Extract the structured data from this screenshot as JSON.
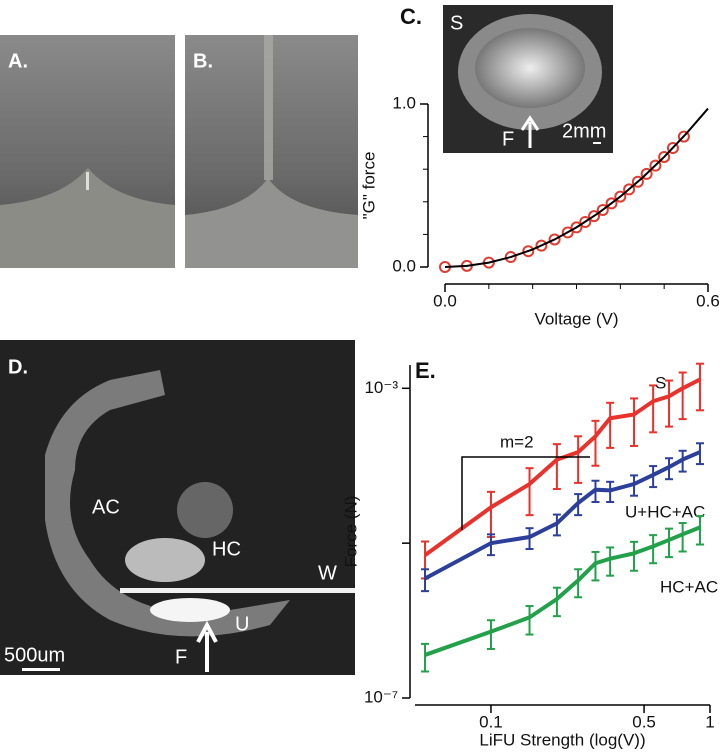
{
  "panel_labels": [
    "A.",
    "B.",
    "C.",
    "D.",
    "E."
  ],
  "inset_c": {
    "labels": [
      "S",
      "F",
      "2mm"
    ]
  },
  "photo_d": {
    "labels": [
      "AC",
      "HC",
      "W",
      "U",
      "F",
      "500um"
    ]
  },
  "chart_data": [
    {
      "type": "scatter",
      "xlabel": "Voltage (V)",
      "ylabel": "\"G\" force",
      "xlim": [
        0,
        0.6
      ],
      "ylim": [
        0,
        1
      ],
      "xticks": [
        {
          "value": 0,
          "label": "0.0"
        },
        {
          "value": 0.6,
          "label": "0.6"
        }
      ],
      "xminor": [
        0.1,
        0.2,
        0.3,
        0.4,
        0.5
      ],
      "yticks": [
        {
          "value": 0,
          "label": "0.0"
        },
        {
          "value": 1,
          "label": "1.0"
        }
      ],
      "yminor": [
        0.2,
        0.4,
        0.6,
        0.8
      ],
      "series": [
        {
          "kind": "points",
          "color": "#e03c31",
          "x": [
            0,
            0.05,
            0.1,
            0.15,
            0.19,
            0.22,
            0.25,
            0.28,
            0.3,
            0.32,
            0.34,
            0.36,
            0.38,
            0.4,
            0.42,
            0.44,
            0.46,
            0.48,
            0.5,
            0.52,
            0.545
          ],
          "values": [
            0,
            0.007,
            0.027,
            0.061,
            0.097,
            0.131,
            0.169,
            0.212,
            0.243,
            0.276,
            0.312,
            0.35,
            0.39,
            0.432,
            0.476,
            0.523,
            0.571,
            0.622,
            0.675,
            0.73,
            0.8
          ]
        },
        {
          "kind": "curve",
          "color": "#000000",
          "x": [
            0,
            0.05,
            0.1,
            0.15,
            0.2,
            0.25,
            0.3,
            0.35,
            0.4,
            0.45,
            0.5,
            0.55,
            0.6
          ],
          "values": [
            0,
            0.007,
            0.027,
            0.061,
            0.108,
            0.169,
            0.243,
            0.331,
            0.432,
            0.547,
            0.675,
            0.817,
            0.972
          ]
        }
      ]
    },
    {
      "type": "line",
      "xlabel": "LiFU Strength (log(V))",
      "ylabel": "Force (N)",
      "xscale": "log",
      "yscale": "log",
      "xlim": [
        0.045,
        1
      ],
      "ylim": [
        1e-07,
        0.002
      ],
      "xticks": [
        0.1,
        0.5,
        1
      ],
      "yticks": [
        {
          "value": 0.001,
          "label": "10⁻³"
        },
        {
          "value": 1e-05,
          "label": ""
        },
        {
          "value": 1e-07,
          "label": "10⁻⁷"
        }
      ],
      "annotation": "m=2",
      "x": [
        0.05,
        0.1,
        0.15,
        0.2,
        0.25,
        0.3,
        0.35,
        0.45,
        0.55,
        0.65,
        0.75,
        0.9
      ],
      "series": [
        {
          "name": "S",
          "color": "#e8322b",
          "values": [
            7e-06,
            2.9e-05,
            5.8e-05,
            0.00012,
            0.00015,
            0.00024,
            0.00041,
            0.00046,
            0.00068,
            0.00079,
            0.001,
            0.0013
          ],
          "errors": [
            3.5e-06,
            1.7e-05,
            3.5e-05,
            7e-05,
            9e-05,
            0.00014,
            0.00024,
            0.00028,
            0.00041,
            0.00047,
            0.0006,
            0.00078
          ]
        },
        {
          "name": "U+HC+AC",
          "color": "#2b3f9b",
          "values": [
            3.5e-06,
            1e-05,
            1.2e-05,
            1.8e-05,
            3.3e-05,
            4.9e-05,
            4.8e-05,
            5.8e-05,
            7.6e-05,
            9.6e-05,
            0.00012,
            0.00015
          ],
          "errors": [
            1.1e-06,
            3e-06,
            3.6e-06,
            5.4e-06,
            1e-05,
            1.5e-05,
            1.4e-05,
            1.7e-05,
            2.3e-05,
            2.9e-05,
            3.6e-05,
            4.5e-05
          ]
        },
        {
          "name": "HC+AC",
          "color": "#22a14a",
          "values": [
            3.6e-07,
            7.2e-07,
            1.1e-06,
            1.9e-06,
            3.3e-06,
            5.5e-06,
            6.3e-06,
            7.4e-06,
            9.1e-06,
            1.1e-05,
            1.3e-05,
            1.6e-05
          ],
          "errors": [
            1.4e-07,
            2.9e-07,
            4.4e-07,
            7.6e-07,
            1.3e-06,
            2.2e-06,
            2.5e-06,
            3e-06,
            3.6e-06,
            4.4e-06,
            5.2e-06,
            6.4e-06
          ]
        }
      ]
    }
  ]
}
